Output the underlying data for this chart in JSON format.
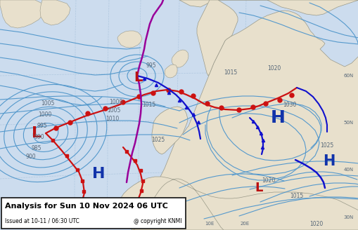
{
  "title_line1": "Analysis for Sun 10 Nov 2024 06 UTC",
  "title_line2": "Issued at 10-11 / 06:30 UTC",
  "copyright": "@ copyright KNMI",
  "bg_ocean": "#ccdcee",
  "bg_land": "#e8e0cc",
  "isobar_color": "#5599cc",
  "grid_color": "#b0c8e0",
  "front_red": "#cc1111",
  "front_blue": "#1111cc",
  "front_purple": "#990099",
  "label_color": "#556677",
  "H_color": "#1133aa",
  "L_color": "#bb1111",
  "text_box_bg": "#ffffff",
  "text_box_edge": "#111111",
  "figsize": [
    5.1,
    3.28
  ],
  "dpi": 100
}
